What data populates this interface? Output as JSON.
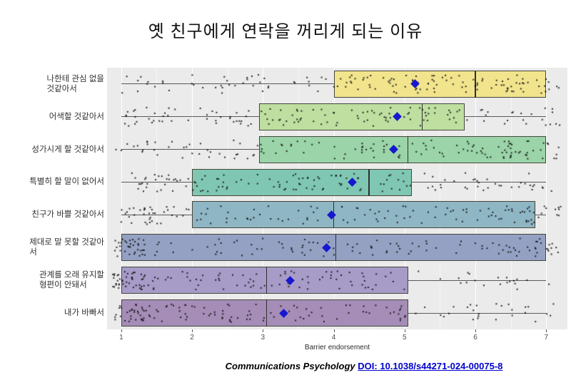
{
  "title": "옛 친구에게 연락을 꺼리게 되는 이유",
  "caption": {
    "source": "Communications Psychology",
    "doi_link": "DOI: 10.1038/s44271-024-00075-8"
  },
  "axis": {
    "label": "Barrier endorsement",
    "ticks": [
      1,
      2,
      3,
      4,
      5,
      6,
      7
    ],
    "view_min": 0.8,
    "view_max": 7.3
  },
  "style_colors": {
    "panel_background": "#ebebeb",
    "major_grid": "#ffffff",
    "minor_grid": "#f5f5f5",
    "mean_diamond": "#1717cf",
    "point_color": "#141414",
    "doi_blue": "#0000cc"
  },
  "chart_data": {
    "type": "boxplot",
    "orientation": "horizontal",
    "title": "옛 친구에게 연락을 꺼리게 되는 이유",
    "xlabel": "Barrier endorsement",
    "xlim": [
      1,
      7
    ],
    "grid": true,
    "rows": [
      {
        "label": "나한테 관심 없을\n것같아서",
        "whisker_low": 1.0,
        "q1": 4.0,
        "median": 6.0,
        "q3": 7.0,
        "whisker_high": 7.0,
        "mean": 5.15,
        "fill": "#f1e48d",
        "n_points": 140,
        "seed": 101
      },
      {
        "label": "어색할 것같아서",
        "whisker_low": 1.0,
        "q1": 2.95,
        "median": 5.25,
        "q3": 5.85,
        "whisker_high": 7.0,
        "mean": 4.9,
        "fill": "#bedfa0",
        "n_points": 140,
        "seed": 202
      },
      {
        "label": "성가시게 할 것같아서",
        "whisker_low": 1.0,
        "q1": 2.95,
        "median": 5.05,
        "q3": 7.0,
        "whisker_high": 7.0,
        "mean": 4.85,
        "fill": "#9ad4a8",
        "n_points": 140,
        "seed": 303
      },
      {
        "label": "특별히 할 말이 없어서",
        "whisker_low": 1.0,
        "q1": 2.0,
        "median": 4.5,
        "q3": 5.1,
        "whisker_high": 7.0,
        "mean": 4.26,
        "fill": "#7fc7b2",
        "n_points": 140,
        "seed": 404
      },
      {
        "label": "친구가 바쁠 것같아서",
        "whisker_low": 1.0,
        "q1": 2.0,
        "median": 4.0,
        "q3": 6.85,
        "whisker_high": 7.0,
        "mean": 3.97,
        "fill": "#8fb6c4",
        "n_points": 140,
        "seed": 505
      },
      {
        "label": "제대로 말 못할 것같아\n서",
        "whisker_low": 1.0,
        "q1": 1.0,
        "median": 4.03,
        "q3": 7.0,
        "whisker_high": 7.0,
        "mean": 3.9,
        "fill": "#94a1c3",
        "n_points": 140,
        "seed": 606
      },
      {
        "label": "관계를 오래 유지할\n형편이 안돼서",
        "whisker_low": 1.0,
        "q1": 1.0,
        "median": 3.05,
        "q3": 5.05,
        "whisker_high": 7.0,
        "mean": 3.38,
        "fill": "#a79bc8",
        "n_points": 140,
        "seed": 707
      },
      {
        "label": "내가 바빠서",
        "whisker_low": 1.0,
        "q1": 1.0,
        "median": 3.05,
        "q3": 5.05,
        "whisker_high": 7.0,
        "mean": 3.29,
        "fill": "#a58db8",
        "n_points": 140,
        "seed": 808
      }
    ]
  }
}
